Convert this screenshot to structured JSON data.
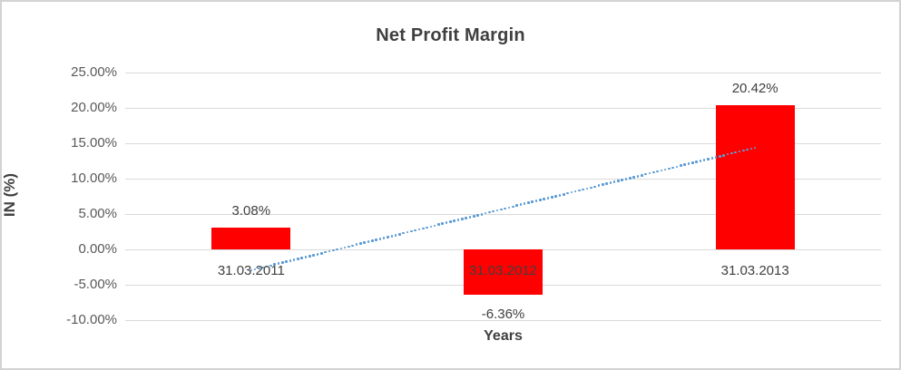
{
  "chart_data": {
    "type": "bar",
    "title": "Net Profit Margin",
    "xlabel": "Years",
    "ylabel": "IN (%)",
    "categories": [
      "31.03.2011",
      "31.03.2012",
      "31.03.2013"
    ],
    "values": [
      3.08,
      -6.36,
      20.42
    ],
    "data_labels": [
      "3.08%",
      "-6.36%",
      "20.42%"
    ],
    "y_ticks": [
      {
        "value": 25,
        "label": "25.00%"
      },
      {
        "value": 20,
        "label": "20.00%"
      },
      {
        "value": 15,
        "label": "15.00%"
      },
      {
        "value": 10,
        "label": "10.00%"
      },
      {
        "value": 5,
        "label": "5.00%"
      },
      {
        "value": 0,
        "label": "0.00%"
      },
      {
        "value": -5,
        "label": "-5.00%"
      },
      {
        "value": -10,
        "label": "-10.00%"
      }
    ],
    "ylim": [
      -10,
      25
    ],
    "grid": true,
    "legend": false,
    "colors": {
      "bar": "#ff0000",
      "trendline": "#5b9bd5",
      "gridline": "#d9d9d9",
      "title_text": "#3f3f3f",
      "tick_text": "#595959",
      "label_text": "#404040",
      "chart_border": "#d3d3d3"
    },
    "trendline": {
      "type": "linear",
      "style": "dotted",
      "color": "#5b9bd5",
      "start_value": -2.96,
      "end_value": 14.38
    }
  }
}
